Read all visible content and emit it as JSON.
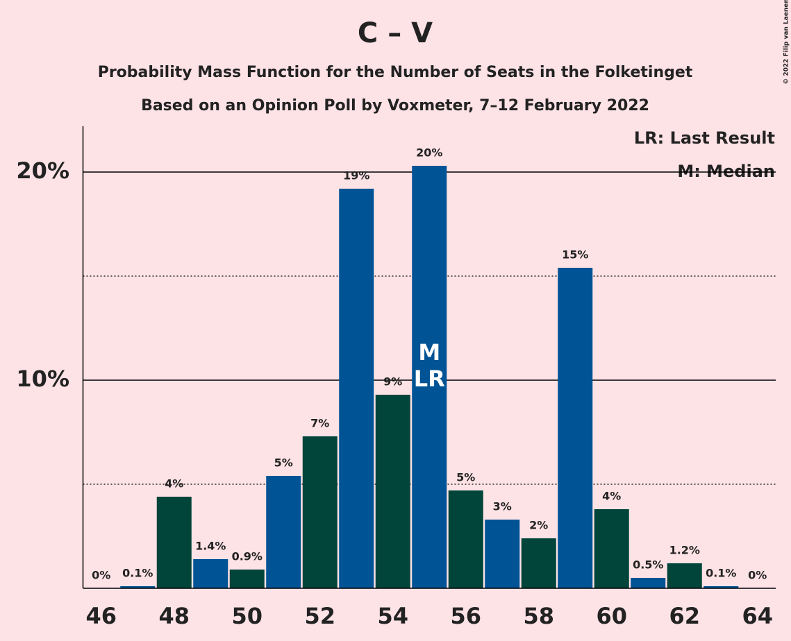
{
  "chart_data": {
    "type": "bar",
    "title": "C – V",
    "subtitle": [
      "Probability Mass Function for the Number of Seats in the Folketinget",
      "Based on an Opinion Poll by Voxmeter, 7–12 February 2022"
    ],
    "categories": [
      46,
      null,
      48,
      null,
      50,
      null,
      52,
      null,
      54,
      null,
      56,
      null,
      58,
      null,
      60,
      null,
      62,
      null,
      64
    ],
    "values": [
      0,
      0.1,
      4.4,
      1.4,
      0.9,
      5.4,
      7.3,
      19.2,
      9.3,
      20.3,
      4.7,
      3.3,
      2.4,
      15.4,
      3.8,
      0.5,
      1.2,
      0.1,
      0
    ],
    "value_labels": [
      "0%",
      "0.1%",
      "4%",
      "1.4%",
      "0.9%",
      "5%",
      "7%",
      "19%",
      "9%",
      "20%",
      "5%",
      "3%",
      "2%",
      "15%",
      "4%",
      "0.5%",
      "1.2%",
      "0.1%",
      "0%"
    ],
    "colors": [
      "#00443a",
      "#005394",
      "#00443a",
      "#005394",
      "#00443a",
      "#005394",
      "#00443a",
      "#005394",
      "#00443a",
      "#005394",
      "#00443a",
      "#005394",
      "#00443a",
      "#005394",
      "#00443a",
      "#005394",
      "#00443a",
      "#005394",
      "#00443a"
    ],
    "ylim": [
      0,
      22.2
    ],
    "yticks": [
      {
        "value": 10,
        "label": "10%"
      },
      {
        "value": 20,
        "label": "20%"
      }
    ],
    "minor_yticks": [
      5,
      15
    ],
    "grid": true,
    "annotations": [
      {
        "label": "M",
        "category_index": 9
      },
      {
        "label": "LR",
        "category_index": 9
      }
    ],
    "legend": [
      "LR: Last Result",
      "M: Median"
    ],
    "copyright": "© 2022 Filip van Laenen"
  }
}
